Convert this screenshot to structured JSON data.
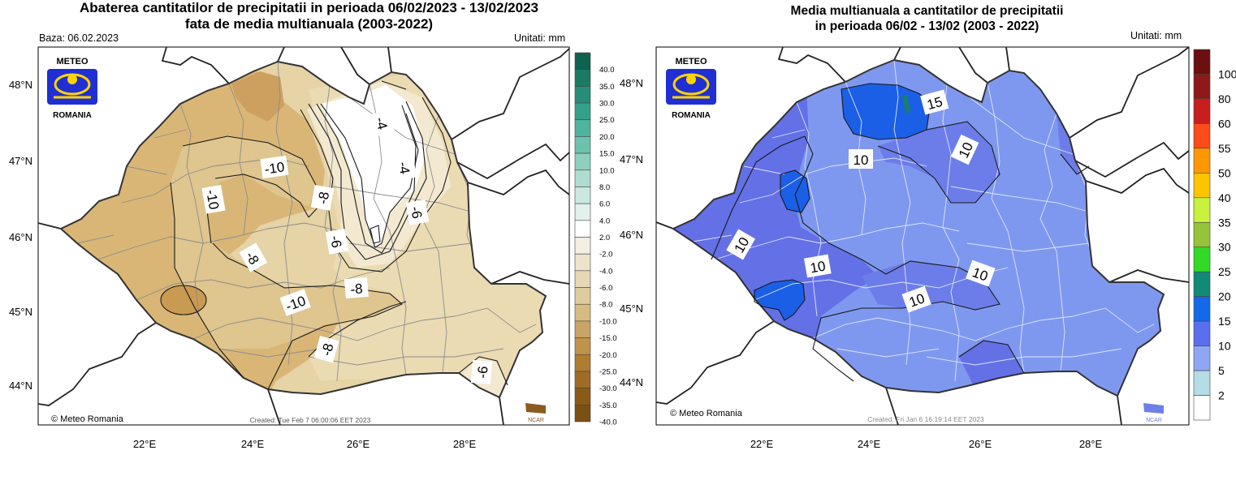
{
  "left_map": {
    "title_line1": "Abaterea cantitatilor de precipitatii in perioada 06/02/2023 - 13/02/2023",
    "title_line2": "fata de media multianuala (2003-2022)",
    "base_label": "Baza: 06.02.2023",
    "units_label": "Unitati: mm",
    "logo_top": "METEO",
    "logo_bottom": "ROMANIA",
    "copyright": "© Meteo Romania",
    "created": "Created: Tue Feb  7 06:00:06 EET 2023",
    "ncar": "NCAR",
    "lat_labels": [
      "48°N",
      "47°N",
      "46°N",
      "45°N",
      "44°N"
    ],
    "lon_labels": [
      "22°E",
      "24°E",
      "26°E",
      "28°E"
    ],
    "contour_labels": [
      "-10",
      "-10",
      "-4",
      "-4",
      "-8",
      "-6",
      "-6",
      "-8",
      "-8",
      "-10",
      "-8",
      "-6"
    ],
    "legend": {
      "labels": [
        "40.0",
        "35.0",
        "30.0",
        "25.0",
        "20.0",
        "15.0",
        "10.0",
        "8.0",
        "6.0",
        "4.0",
        "2.0",
        "-2.0",
        "-4.0",
        "-6.0",
        "-8.0",
        "-10.0",
        "-15.0",
        "-20.0",
        "-25.0",
        "-30.0",
        "-35.0",
        "-40.0"
      ],
      "colors": [
        "#0f6150",
        "#1b7a64",
        "#268d77",
        "#35a088",
        "#4fb49c",
        "#6cc2ad",
        "#8ecfbf",
        "#aedcd0",
        "#c9e8df",
        "#e2f1ec",
        "#ffffff",
        "#f3efe2",
        "#ece3cb",
        "#e6d8b3",
        "#dfcc9c",
        "#d6bc80",
        "#c9a466",
        "#bf934b",
        "#b07c31",
        "#a06b25",
        "#8a5a17",
        "#7b5013"
      ]
    },
    "colors": {
      "dark_brown": "#d2b06e",
      "mid_brown": "#dfc48f",
      "light_tan": "#ecdcb5",
      "pale": "#f3ead2",
      "white_zone": "#ffffff",
      "hot_brown": "#c6984e"
    }
  },
  "right_map": {
    "title_line1": "Media multianuala a cantitatilor de precipitatii",
    "title_line2": "in perioada 06/02 - 13/02 (2003 - 2022)",
    "units_label": "Unitati: mm",
    "logo_top": "METEO",
    "logo_bottom": "ROMANIA",
    "copyright": "© Meteo Romania",
    "created": "Created: Fri Jan  6 16:19:14 EET 2023",
    "ncar": "NCAR",
    "lat_labels": [
      "48°N",
      "47°N",
      "46°N",
      "45°N",
      "44°N"
    ],
    "lon_labels": [
      "22°E",
      "24°E",
      "26°E",
      "28°E"
    ],
    "contour_labels": [
      "15",
      "10",
      "10",
      "10",
      "10",
      "10",
      "10"
    ],
    "legend": {
      "labels": [
        "100",
        "80",
        "60",
        "55",
        "50",
        "40",
        "35",
        "30",
        "25",
        "20",
        "15",
        "10",
        "5",
        "2"
      ],
      "colors": [
        "#6b0f0f",
        "#8f1818",
        "#c81e1e",
        "#ff4a1a",
        "#ff9800",
        "#ffc400",
        "#c8f23c",
        "#93c43a",
        "#33d927",
        "#118a77",
        "#1469ea",
        "#5a6ff0",
        "#8fa6f4",
        "#b4dde6",
        "#ffffff"
      ]
    },
    "colors": {
      "base_blue": "#7f98ef",
      "mid_blue": "#6474e8",
      "deep_blue": "#1a5fe6",
      "teal": "#1e7c6e"
    }
  }
}
